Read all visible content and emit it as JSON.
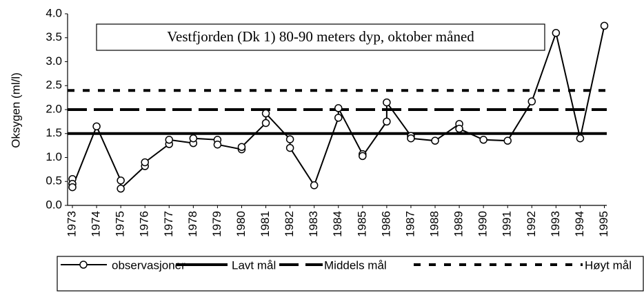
{
  "chart_data": {
    "type": "line",
    "title": "Vestfjorden (Dk 1) 80-90 meters dyp, oktober måned",
    "y_label": "Oksygen (ml/l)",
    "xlim": [
      1972.8,
      1995.1
    ],
    "xticks": [
      1973,
      1974,
      1975,
      1976,
      1977,
      1978,
      1979,
      1980,
      1981,
      1982,
      1983,
      1984,
      1985,
      1986,
      1987,
      1988,
      1989,
      1990,
      1991,
      1992,
      1993,
      1994,
      1995
    ],
    "ylim": [
      0,
      4
    ],
    "yticks": [
      {
        "value": 0,
        "label": "0.0"
      },
      0.5,
      {
        "value": 1,
        "label": "1.0"
      },
      1.5,
      {
        "value": 2,
        "label": "2.0"
      },
      2.5,
      {
        "value": 3,
        "label": "3.0"
      },
      3.5,
      {
        "value": 4,
        "label": "4.0"
      }
    ],
    "grid": false,
    "series": [
      {
        "name": "observasjoner",
        "color": "#000000",
        "x": [
          1973,
          1973,
          1973,
          1974,
          1975,
          1975,
          1976,
          1976,
          1977,
          1977,
          1978,
          1978,
          1979,
          1979,
          1980,
          1980,
          1981,
          1981,
          1982,
          1982,
          1983,
          1984,
          1984,
          1985,
          1985,
          1986,
          1986,
          1987,
          1987,
          1988,
          1989,
          1989,
          1990,
          1991,
          1992,
          1993,
          1994,
          1995
        ],
        "values": [
          0.55,
          0.45,
          0.38,
          1.65,
          0.52,
          0.35,
          0.82,
          0.9,
          1.28,
          1.37,
          1.3,
          1.4,
          1.37,
          1.27,
          1.17,
          1.22,
          1.72,
          1.92,
          1.38,
          1.2,
          0.42,
          1.83,
          2.03,
          1.07,
          1.03,
          1.75,
          2.15,
          1.45,
          1.4,
          1.35,
          1.7,
          1.6,
          1.37,
          1.35,
          2.17,
          3.6,
          1.4,
          3.75
        ]
      }
    ],
    "reference_lines": [
      {
        "name": "Lavt mål",
        "value": 1.5,
        "style": "solid"
      },
      {
        "name": "Middels mål",
        "value": 2.0,
        "style": "long-dash"
      },
      {
        "name": "Høyt mål",
        "value": 2.4,
        "style": "short-dash"
      }
    ],
    "legend": "bottom"
  }
}
